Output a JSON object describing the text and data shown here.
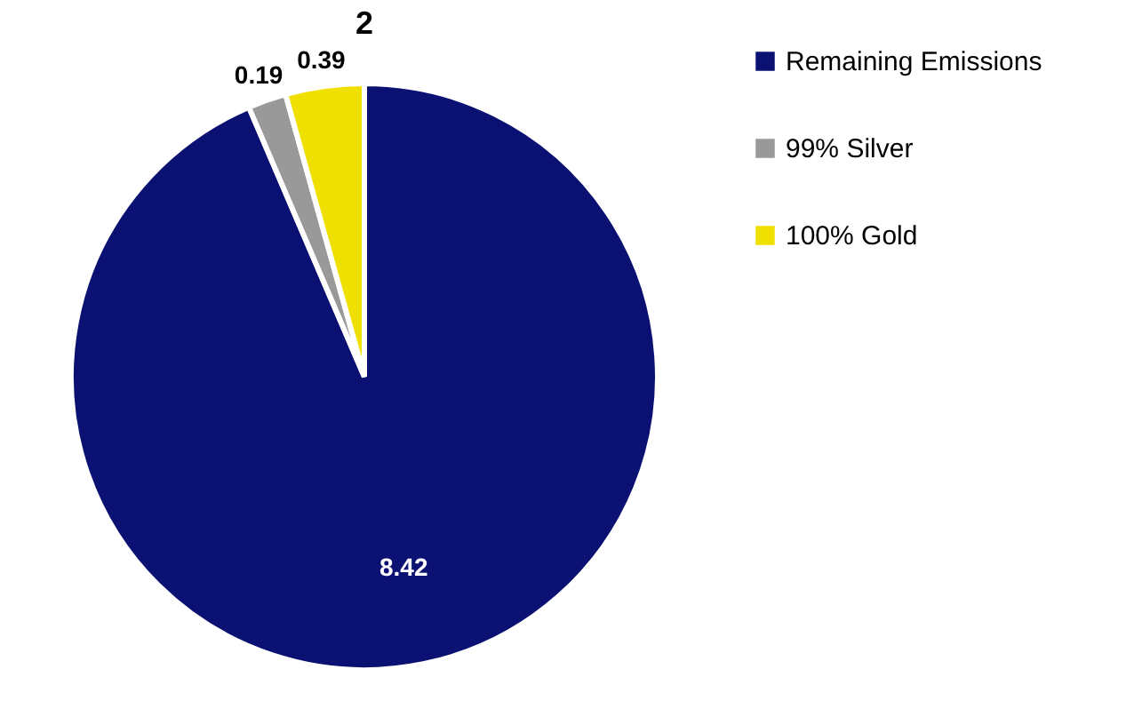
{
  "chart_data": {
    "type": "pie",
    "title": "2",
    "categories": [
      "Remaining Emissions",
      "99% Silver",
      "100% Gold"
    ],
    "values": [
      8.42,
      0.19,
      0.39
    ],
    "colors": [
      "#0a1172",
      "#999999",
      "#f0e000"
    ],
    "data_labels": true,
    "legend": "right"
  }
}
